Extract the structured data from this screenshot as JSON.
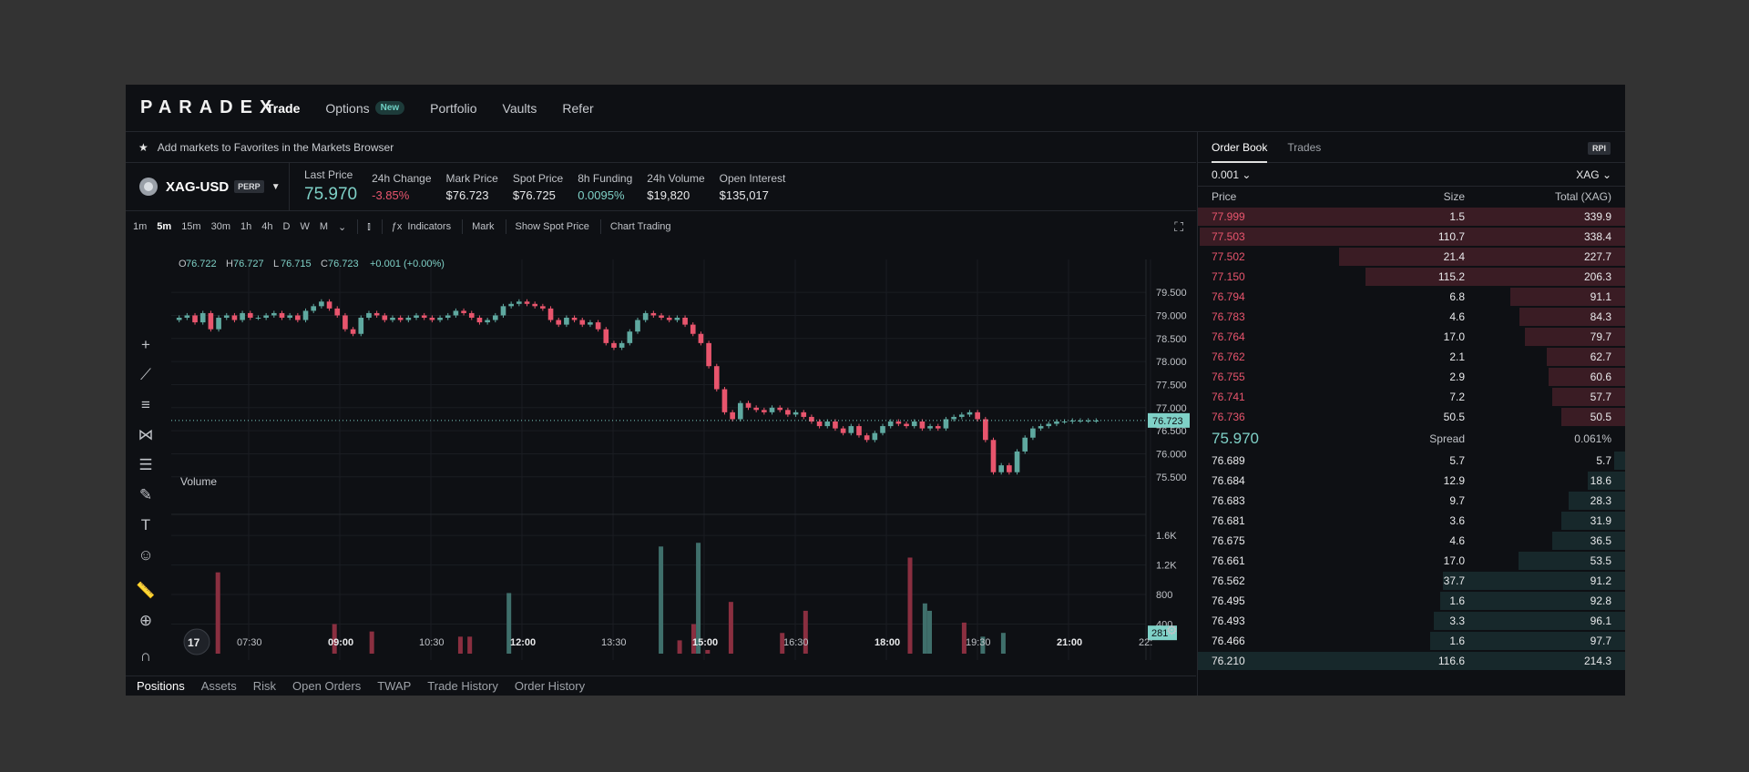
{
  "nav": {
    "logo": "PARADEX",
    "items": [
      {
        "label": "Trade"
      },
      {
        "label": "Options",
        "badge": "New"
      },
      {
        "label": "Portfolio"
      },
      {
        "label": "Vaults"
      },
      {
        "label": "Refer"
      }
    ]
  },
  "favorites_hint": "Add markets to Favorites in the Markets Browser",
  "market": {
    "symbol": "XAG-USD",
    "type": "PERP"
  },
  "stats": [
    {
      "label": "Last Price",
      "value": "75.970"
    },
    {
      "label": "24h Change",
      "value": "-3.85%"
    },
    {
      "label": "Mark Price",
      "value": "$76.723"
    },
    {
      "label": "Spot Price",
      "value": "$76.725"
    },
    {
      "label": "8h Funding",
      "value": "0.0095%"
    },
    {
      "label": "24h Volume",
      "value": "$19,820"
    },
    {
      "label": "Open Interest",
      "value": "$135,017"
    }
  ],
  "toolbar": {
    "timeframes": [
      "1m",
      "5m",
      "15m",
      "30m",
      "1h",
      "4h",
      "D",
      "W",
      "M"
    ],
    "active_timeframe": "5m",
    "indicators": "Indicators",
    "mark": "Mark",
    "show_spot": "Show Spot Price",
    "chart_trading": "Chart Trading"
  },
  "chart_data": {
    "type": "candlestick",
    "ohlc_legend": {
      "o": "76.722",
      "h": "76.727",
      "l": "76.715",
      "c": "76.723",
      "change": "+0.001 (+0.00%)"
    },
    "price_ticks": [
      "79.500",
      "79.000",
      "78.500",
      "78.000",
      "77.500",
      "77.000",
      "76.500",
      "76.000",
      "75.500"
    ],
    "price_tick_values": [
      79.5,
      79.0,
      78.5,
      78.0,
      77.5,
      77.0,
      76.5,
      76.0,
      75.5
    ],
    "current_price": "76.723",
    "current_price_value": 76.723,
    "time_ticks": [
      "07:30",
      "09:00",
      "10:30",
      "12:00",
      "13:30",
      "15:00",
      "16:30",
      "18:00",
      "19:30",
      "21:00",
      "22:"
    ],
    "volume_label": "Volume",
    "volume_ticks": [
      "1.6K",
      "1.2K",
      "800",
      "400"
    ],
    "volume_tick_values": [
      1600,
      1200,
      800,
      400
    ],
    "current_volume": "281",
    "close_path": [
      78.9,
      78.95,
      79.0,
      78.85,
      79.05,
      78.7,
      78.95,
      79.0,
      78.9,
      79.05,
      78.95,
      78.95,
      79.0,
      79.05,
      78.95,
      79.0,
      78.9,
      79.1,
      79.2,
      79.3,
      79.15,
      79.0,
      78.7,
      78.6,
      78.95,
      79.05,
      79.0,
      78.9,
      78.95,
      78.9,
      78.95,
      79.0,
      78.95,
      78.9,
      78.95,
      79.0,
      79.1,
      79.05,
      78.95,
      78.85,
      78.9,
      79.0,
      79.2,
      79.25,
      79.3,
      79.25,
      79.2,
      79.15,
      78.9,
      78.8,
      78.95,
      78.9,
      78.8,
      78.85,
      78.7,
      78.4,
      78.3,
      78.4,
      78.65,
      78.9,
      79.05,
      79.0,
      78.95,
      78.9,
      78.95,
      78.8,
      78.6,
      78.4,
      77.9,
      77.4,
      76.9,
      76.75,
      77.1,
      77.0,
      76.95,
      76.9,
      77.0,
      76.95,
      76.85,
      76.9,
      76.8,
      76.7,
      76.6,
      76.7,
      76.55,
      76.45,
      76.6,
      76.4,
      76.3,
      76.45,
      76.6,
      76.7,
      76.65,
      76.6,
      76.7,
      76.55,
      76.6,
      76.55,
      76.75,
      76.8,
      76.85,
      76.9,
      76.75,
      76.3,
      75.6,
      75.75,
      75.6,
      76.05,
      76.35,
      76.55,
      76.6,
      76.65,
      76.7,
      76.7,
      76.72,
      76.72,
      76.72,
      76.72
    ],
    "volume_bars": [
      {
        "x": 0.05,
        "v": 1100,
        "c": "r"
      },
      {
        "x": 0.175,
        "v": 400,
        "c": "r"
      },
      {
        "x": 0.215,
        "v": 300,
        "c": "r"
      },
      {
        "x": 0.31,
        "v": 230,
        "c": "r"
      },
      {
        "x": 0.32,
        "v": 230,
        "c": "r"
      },
      {
        "x": 0.362,
        "v": 820,
        "c": "g"
      },
      {
        "x": 0.525,
        "v": 1450,
        "c": "g"
      },
      {
        "x": 0.545,
        "v": 180,
        "c": "r"
      },
      {
        "x": 0.56,
        "v": 400,
        "c": "r"
      },
      {
        "x": 0.565,
        "v": 1500,
        "c": "g"
      },
      {
        "x": 0.575,
        "v": 50,
        "c": "r"
      },
      {
        "x": 0.6,
        "v": 700,
        "c": "r"
      },
      {
        "x": 0.655,
        "v": 280,
        "c": "r"
      },
      {
        "x": 0.68,
        "v": 580,
        "c": "r"
      },
      {
        "x": 0.792,
        "v": 1300,
        "c": "r"
      },
      {
        "x": 0.808,
        "v": 680,
        "c": "g"
      },
      {
        "x": 0.813,
        "v": 580,
        "c": "g"
      },
      {
        "x": 0.85,
        "v": 420,
        "c": "r"
      },
      {
        "x": 0.87,
        "v": 230,
        "c": "g"
      },
      {
        "x": 0.892,
        "v": 281,
        "c": "g"
      }
    ]
  },
  "bottom_tabs": [
    "Positions",
    "Assets",
    "Risk",
    "Open Orders",
    "TWAP",
    "Trade History",
    "Order History"
  ],
  "orderbook": {
    "tabs": [
      "Order Book",
      "Trades"
    ],
    "rpi": "RPI",
    "tick_size": "0.001",
    "unit": "XAG",
    "headers": [
      "Price",
      "Size",
      "Total (XAG)"
    ],
    "asks": [
      [
        "77.999",
        "1.5",
        "339.9"
      ],
      [
        "77.503",
        "110.7",
        "338.4"
      ],
      [
        "77.502",
        "21.4",
        "227.7"
      ],
      [
        "77.150",
        "115.2",
        "206.3"
      ],
      [
        "76.794",
        "6.8",
        "91.1"
      ],
      [
        "76.783",
        "4.6",
        "84.3"
      ],
      [
        "76.764",
        "17.0",
        "79.7"
      ],
      [
        "76.762",
        "2.1",
        "62.7"
      ],
      [
        "76.755",
        "2.9",
        "60.6"
      ],
      [
        "76.741",
        "7.2",
        "57.7"
      ],
      [
        "76.736",
        "50.5",
        "50.5"
      ]
    ],
    "mid_price": "75.970",
    "spread_label": "Spread",
    "spread_value": "0.061%",
    "bids": [
      [
        "76.689",
        "5.7",
        "5.7"
      ],
      [
        "76.684",
        "12.9",
        "18.6"
      ],
      [
        "76.683",
        "9.7",
        "28.3"
      ],
      [
        "76.681",
        "3.6",
        "31.9"
      ],
      [
        "76.675",
        "4.6",
        "36.5"
      ],
      [
        "76.661",
        "17.0",
        "53.5"
      ],
      [
        "76.562",
        "37.7",
        "91.2"
      ],
      [
        "76.495",
        "1.6",
        "92.8"
      ],
      [
        "76.493",
        "3.3",
        "96.1"
      ],
      [
        "76.466",
        "1.6",
        "97.7"
      ],
      [
        "76.210",
        "116.6",
        "214.3"
      ]
    ]
  },
  "colors": {
    "up": "#5fa9a0",
    "down": "#e8556d",
    "bg": "#0e1014"
  }
}
